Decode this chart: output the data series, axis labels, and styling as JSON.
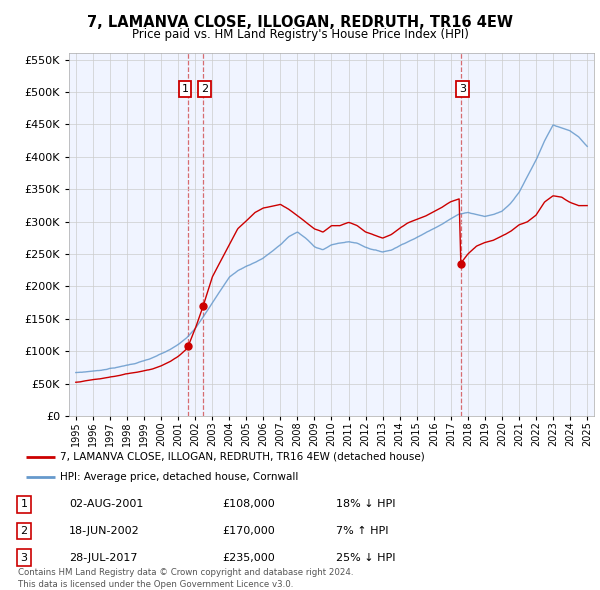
{
  "title": "7, LAMANVA CLOSE, ILLOGAN, REDRUTH, TR16 4EW",
  "subtitle": "Price paid vs. HM Land Registry's House Price Index (HPI)",
  "legend_red": "7, LAMANVA CLOSE, ILLOGAN, REDRUTH, TR16 4EW (detached house)",
  "legend_blue": "HPI: Average price, detached house, Cornwall",
  "table_rows": [
    {
      "num": "1",
      "date": "02-AUG-2001",
      "price": "£108,000",
      "hpi": "18% ↓ HPI"
    },
    {
      "num": "2",
      "date": "18-JUN-2002",
      "price": "£170,000",
      "hpi": "7% ↑ HPI"
    },
    {
      "num": "3",
      "date": "28-JUL-2017",
      "price": "£235,000",
      "hpi": "25% ↓ HPI"
    }
  ],
  "footer": "Contains HM Land Registry data © Crown copyright and database right 2024.\nThis data is licensed under the Open Government Licence v3.0.",
  "sale_dates": [
    2001.583,
    2002.464,
    2017.572
  ],
  "sale_prices": [
    108000,
    170000,
    235000
  ],
  "sale_labels": [
    "1",
    "2",
    "3"
  ],
  "ylim": [
    0,
    560000
  ],
  "yticks": [
    0,
    50000,
    100000,
    150000,
    200000,
    250000,
    300000,
    350000,
    400000,
    450000,
    500000,
    550000
  ],
  "red_color": "#cc0000",
  "blue_color": "#6699cc",
  "vline_color": "#cc3333",
  "background_color": "#ffffff",
  "grid_color": "#cccccc",
  "hpi_base_points": [
    [
      1995.0,
      67000
    ],
    [
      1995.5,
      68000
    ],
    [
      1996.0,
      69500
    ],
    [
      1996.5,
      71000
    ],
    [
      1997.0,
      74000
    ],
    [
      1997.5,
      76000
    ],
    [
      1998.0,
      79000
    ],
    [
      1998.5,
      82000
    ],
    [
      1999.0,
      86000
    ],
    [
      1999.5,
      90000
    ],
    [
      2000.0,
      96000
    ],
    [
      2000.5,
      102000
    ],
    [
      2001.0,
      110000
    ],
    [
      2001.5,
      120000
    ],
    [
      2002.0,
      135000
    ],
    [
      2002.5,
      155000
    ],
    [
      2003.0,
      175000
    ],
    [
      2003.5,
      195000
    ],
    [
      2004.0,
      215000
    ],
    [
      2004.5,
      225000
    ],
    [
      2005.0,
      232000
    ],
    [
      2005.5,
      238000
    ],
    [
      2006.0,
      245000
    ],
    [
      2006.5,
      255000
    ],
    [
      2007.0,
      265000
    ],
    [
      2007.5,
      278000
    ],
    [
      2008.0,
      285000
    ],
    [
      2008.5,
      275000
    ],
    [
      2009.0,
      262000
    ],
    [
      2009.5,
      258000
    ],
    [
      2010.0,
      265000
    ],
    [
      2010.5,
      268000
    ],
    [
      2011.0,
      270000
    ],
    [
      2011.5,
      268000
    ],
    [
      2012.0,
      262000
    ],
    [
      2012.5,
      258000
    ],
    [
      2013.0,
      255000
    ],
    [
      2013.5,
      258000
    ],
    [
      2014.0,
      265000
    ],
    [
      2014.5,
      272000
    ],
    [
      2015.0,
      278000
    ],
    [
      2015.5,
      285000
    ],
    [
      2016.0,
      292000
    ],
    [
      2016.5,
      300000
    ],
    [
      2017.0,
      308000
    ],
    [
      2017.5,
      315000
    ],
    [
      2018.0,
      318000
    ],
    [
      2018.5,
      315000
    ],
    [
      2019.0,
      312000
    ],
    [
      2019.5,
      315000
    ],
    [
      2020.0,
      320000
    ],
    [
      2020.5,
      332000
    ],
    [
      2021.0,
      350000
    ],
    [
      2021.5,
      375000
    ],
    [
      2022.0,
      400000
    ],
    [
      2022.5,
      430000
    ],
    [
      2023.0,
      455000
    ],
    [
      2023.5,
      450000
    ],
    [
      2024.0,
      445000
    ],
    [
      2024.5,
      435000
    ],
    [
      2025.0,
      420000
    ]
  ],
  "red_base_points": [
    [
      1995.0,
      52000
    ],
    [
      1995.5,
      54000
    ],
    [
      1996.0,
      56000
    ],
    [
      1996.5,
      57500
    ],
    [
      1997.0,
      60000
    ],
    [
      1997.5,
      62000
    ],
    [
      1998.0,
      65000
    ],
    [
      1998.5,
      67000
    ],
    [
      1999.0,
      70000
    ],
    [
      1999.5,
      73000
    ],
    [
      2000.0,
      78000
    ],
    [
      2000.5,
      84000
    ],
    [
      2001.0,
      92000
    ],
    [
      2001.5,
      104000
    ],
    [
      2001.583,
      108000
    ],
    [
      2002.0,
      135000
    ],
    [
      2002.464,
      170000
    ],
    [
      2003.0,
      215000
    ],
    [
      2003.5,
      240000
    ],
    [
      2004.0,
      265000
    ],
    [
      2004.5,
      290000
    ],
    [
      2005.0,
      302000
    ],
    [
      2005.5,
      315000
    ],
    [
      2006.0,
      322000
    ],
    [
      2006.5,
      325000
    ],
    [
      2007.0,
      328000
    ],
    [
      2007.5,
      320000
    ],
    [
      2008.0,
      310000
    ],
    [
      2008.5,
      300000
    ],
    [
      2009.0,
      290000
    ],
    [
      2009.5,
      285000
    ],
    [
      2010.0,
      295000
    ],
    [
      2010.5,
      295000
    ],
    [
      2011.0,
      300000
    ],
    [
      2011.5,
      295000
    ],
    [
      2012.0,
      285000
    ],
    [
      2012.5,
      280000
    ],
    [
      2013.0,
      275000
    ],
    [
      2013.5,
      280000
    ],
    [
      2014.0,
      290000
    ],
    [
      2014.5,
      298000
    ],
    [
      2015.0,
      303000
    ],
    [
      2015.5,
      308000
    ],
    [
      2016.0,
      315000
    ],
    [
      2016.5,
      322000
    ],
    [
      2017.0,
      330000
    ],
    [
      2017.5,
      335000
    ],
    [
      2017.572,
      235000
    ],
    [
      2018.0,
      250000
    ],
    [
      2018.5,
      262000
    ],
    [
      2019.0,
      268000
    ],
    [
      2019.5,
      272000
    ],
    [
      2020.0,
      278000
    ],
    [
      2020.5,
      285000
    ],
    [
      2021.0,
      295000
    ],
    [
      2021.5,
      300000
    ],
    [
      2022.0,
      310000
    ],
    [
      2022.5,
      330000
    ],
    [
      2023.0,
      340000
    ],
    [
      2023.5,
      338000
    ],
    [
      2024.0,
      330000
    ],
    [
      2024.5,
      325000
    ],
    [
      2025.0,
      325000
    ]
  ]
}
